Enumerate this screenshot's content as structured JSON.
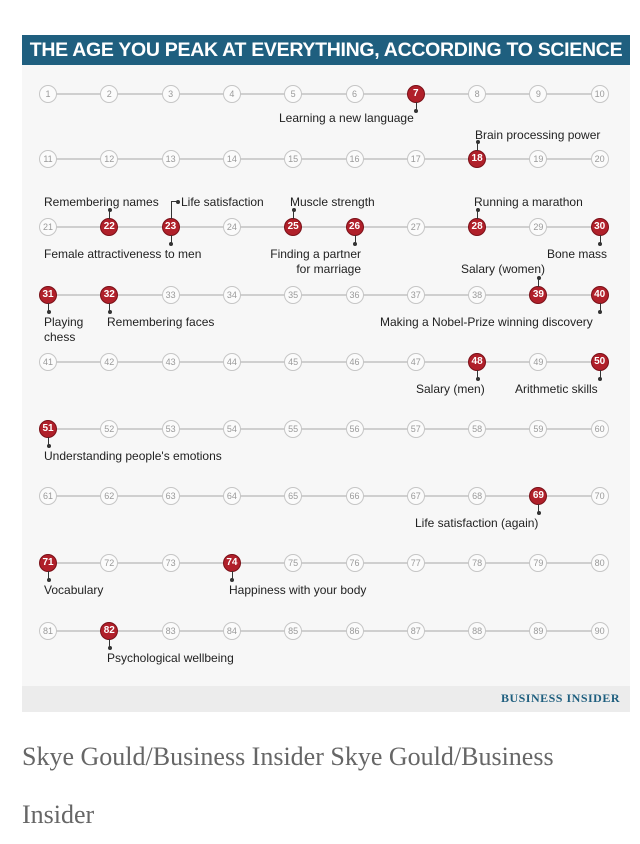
{
  "title": "THE AGE YOU PEAK AT EVERYTHING, ACCORDING TO SCIENCE",
  "brand": "BUSINESS INSIDER",
  "caption": "Skye Gould/Business Insider   Skye Gould/Business Insider",
  "age_range": [
    1,
    90
  ],
  "peaks": [
    {
      "age": 7,
      "label": "Learning a new language"
    },
    {
      "age": 18,
      "label": "Brain processing power"
    },
    {
      "age": 22,
      "label": "Remembering names"
    },
    {
      "age": 23,
      "label": "Life satisfaction"
    },
    {
      "age": 23,
      "label": "Female attractiveness to men"
    },
    {
      "age": 25,
      "label": "Muscle strength"
    },
    {
      "age": 26,
      "label": "Finding a partner for marriage"
    },
    {
      "age": 28,
      "label": "Running a marathon"
    },
    {
      "age": 30,
      "label": "Bone mass"
    },
    {
      "age": 39,
      "label": "Salary (women)"
    },
    {
      "age": 31,
      "label": "Playing chess"
    },
    {
      "age": 32,
      "label": "Remembering faces"
    },
    {
      "age": 40,
      "label": "Making a Nobel-Prize winning discovery"
    },
    {
      "age": 48,
      "label": "Salary (men)"
    },
    {
      "age": 50,
      "label": "Arithmetic skills"
    },
    {
      "age": 51,
      "label": "Understanding people's emotions"
    },
    {
      "age": 69,
      "label": "Life satisfaction (again)"
    },
    {
      "age": 71,
      "label": "Vocabulary"
    },
    {
      "age": 74,
      "label": "Happiness with your body"
    },
    {
      "age": 82,
      "label": "Psychological wellbeing"
    }
  ]
}
